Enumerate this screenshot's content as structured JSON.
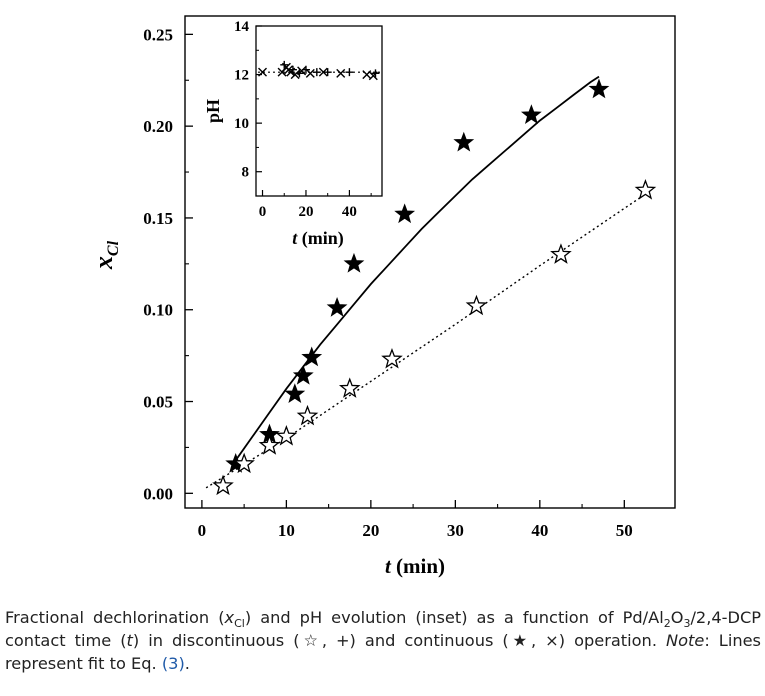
{
  "chart_data": [
    {
      "type": "scatter",
      "xlabel_var": "t",
      "xlabel_unit": "(min)",
      "ylabel_var": "x",
      "ylabel_sub": "Cl",
      "xlim": [
        -2,
        56
      ],
      "ylim": [
        -0.008,
        0.26
      ],
      "x_ticks": [
        "0",
        "10",
        "20",
        "30",
        "40",
        "50"
      ],
      "y_ticks": [
        "0.00",
        "0.05",
        "0.10",
        "0.15",
        "0.20",
        "0.25"
      ],
      "series": [
        {
          "marker": "filled-star",
          "x": [
            4,
            8,
            11,
            12,
            13,
            16,
            18,
            24,
            31,
            39,
            47
          ],
          "y": [
            0.016,
            0.032,
            0.054,
            0.064,
            0.074,
            0.101,
            0.125,
            0.152,
            0.191,
            0.206,
            0.22
          ]
        },
        {
          "marker": "open-star",
          "x": [
            2.5,
            5,
            8,
            10,
            12.5,
            17.5,
            22.5,
            32.5,
            42.5,
            52.5
          ],
          "y": [
            0.004,
            0.016,
            0.026,
            0.031,
            0.042,
            0.057,
            0.073,
            0.102,
            0.13,
            0.165
          ]
        }
      ],
      "fit_lines": [
        {
          "style": "solid",
          "x": [
            4,
            6,
            8,
            10,
            12,
            14,
            16,
            18,
            20,
            22,
            24,
            26,
            28,
            30,
            32,
            34,
            36,
            38,
            40,
            42,
            44,
            46,
            47
          ],
          "y": [
            0.018,
            0.031,
            0.044,
            0.057,
            0.069,
            0.081,
            0.092,
            0.103,
            0.114,
            0.124,
            0.134,
            0.144,
            0.153,
            0.162,
            0.171,
            0.179,
            0.187,
            0.195,
            0.203,
            0.21,
            0.217,
            0.224,
            0.227
          ]
        },
        {
          "style": "dotted",
          "x": [
            0.5,
            10,
            20,
            30,
            40,
            52.5
          ],
          "y": [
            0.003,
            0.03,
            0.061,
            0.092,
            0.124,
            0.163
          ]
        }
      ]
    },
    {
      "type": "scatter",
      "inset": true,
      "ylabel": "pH",
      "xlabel_var": "t",
      "xlabel_unit": "(min)",
      "xlim": [
        -3,
        55
      ],
      "ylim": [
        7,
        14
      ],
      "x_ticks": [
        "0",
        "20",
        "40"
      ],
      "y_ticks": [
        "8",
        "10",
        "12",
        "14"
      ],
      "series": [
        {
          "marker": "x",
          "x": [
            0,
            9,
            11,
            12,
            13,
            15,
            18,
            22,
            28,
            36,
            48,
            51
          ],
          "y": [
            12.1,
            12.1,
            12.3,
            12.2,
            12.1,
            12.0,
            12.15,
            12.05,
            12.1,
            12.05,
            12.0,
            11.95
          ]
        },
        {
          "marker": "plus",
          "x": [
            10,
            14,
            17,
            20,
            25,
            30,
            40,
            52
          ],
          "y": [
            12.4,
            12.2,
            12.05,
            12.2,
            12.1,
            12.1,
            12.1,
            12.05
          ]
        }
      ],
      "fit_line": {
        "style": "dotted",
        "y": 12.1
      }
    }
  ],
  "caption": {
    "lead": "Fractional dechlorination (",
    "var1": "x",
    "var1_sub": "Cl",
    "part2": ") and pH evolution (inset) as a function of",
    "part3a": "Pd/Al",
    "sub2": "2",
    "part3b": "O",
    "sub3": "3",
    "part3c": "/2,4-DCP contact time (",
    "var2": "t",
    "part4": ") in discontinuous (☆, +) and continuous (★, ×)",
    "part5": "operation.",
    "note": "Note",
    "part6": ": Lines represent fit to Eq.",
    "ref": "(3)",
    "end": "."
  }
}
